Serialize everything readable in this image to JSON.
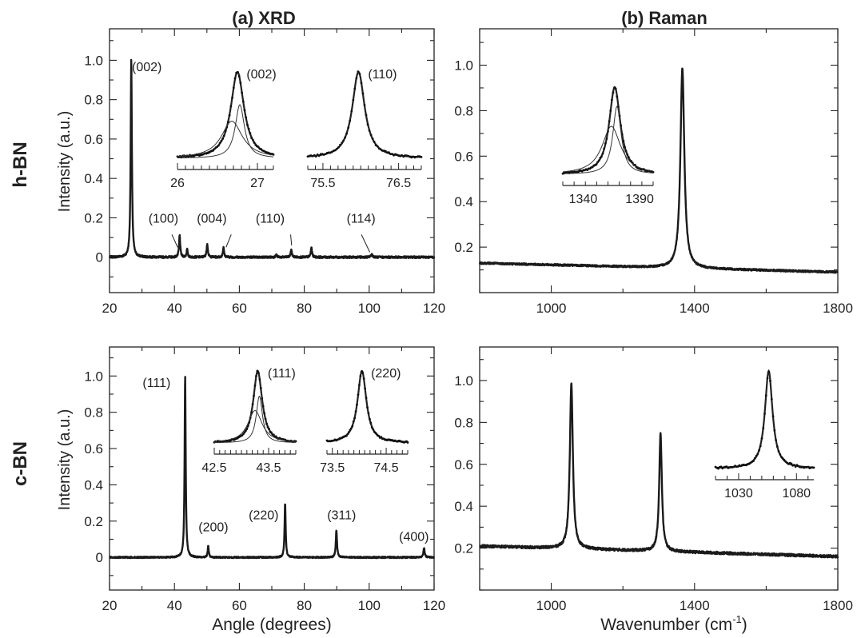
{
  "column_titles": [
    "(a)  XRD",
    "(b)  Raman"
  ],
  "row_labels": [
    "h-BN",
    "c-BN"
  ],
  "xrd_ylabel": "Intensity (a.u.)",
  "xrd_xlabel": "Angle (degrees)",
  "raman_xlabel_main": "Wavenumber (cm",
  "raman_xlabel_sup": "-1",
  "raman_xlabel_close": ")",
  "chart_data": [
    {
      "id": "xrd_hbn",
      "type": "line",
      "panel": "a",
      "row": "h-BN",
      "xlabel": "",
      "ylabel": "Intensity (a.u.)",
      "xlim": [
        20,
        120
      ],
      "ylim": [
        -0.18,
        1.16
      ],
      "xticks": [
        20,
        40,
        60,
        80,
        100,
        120
      ],
      "yticks": [
        0,
        0.2,
        0.4,
        0.6,
        0.8,
        1.0
      ],
      "yticklabels": [
        "0",
        "0.2",
        "0.4",
        "0.6",
        "0.8",
        "1.0"
      ],
      "baseline": 0,
      "noise": 0.005,
      "peaks": [
        {
          "x": 26.7,
          "h": 1.0,
          "w": 0.22
        },
        {
          "x": 41.6,
          "h": 0.11,
          "w": 0.22
        },
        {
          "x": 43.9,
          "h": 0.04,
          "w": 0.2
        },
        {
          "x": 50.1,
          "h": 0.07,
          "w": 0.22
        },
        {
          "x": 55.1,
          "h": 0.05,
          "w": 0.22
        },
        {
          "x": 71.4,
          "h": 0.012,
          "w": 0.25
        },
        {
          "x": 76.0,
          "h": 0.04,
          "w": 0.22
        },
        {
          "x": 82.2,
          "h": 0.05,
          "w": 0.22
        },
        {
          "x": 100.8,
          "h": 0.015,
          "w": 0.3
        }
      ],
      "annotations": [
        {
          "text": "(002)",
          "x": 31.5,
          "y": 0.945
        },
        {
          "text": "(100)",
          "x": 36.6,
          "y": 0.175
        },
        {
          "text": "(004)",
          "x": 51.5,
          "y": 0.175
        },
        {
          "text": "(110)",
          "x": 69.5,
          "y": 0.175
        },
        {
          "text": "(114)",
          "x": 97.5,
          "y": 0.175
        }
      ],
      "leaders": [
        {
          "x1": 39.2,
          "y1": 0.115,
          "x2": 41.0,
          "y2": 0.05
        },
        {
          "x1": 57.5,
          "y1": 0.115,
          "x2": 55.9,
          "y2": 0.05
        },
        {
          "x1": 75.8,
          "y1": 0.115,
          "x2": 76.1,
          "y2": 0.06
        },
        {
          "x1": 97.6,
          "y1": 0.115,
          "x2": 100.2,
          "y2": 0.025
        }
      ],
      "insets": [
        {
          "label": "(002)",
          "xlim": [
            26.0,
            27.2
          ],
          "center": 26.75,
          "w": 0.1,
          "tick_labels": [
            "26",
            "27"
          ],
          "tick_values": [
            26,
            27
          ],
          "minor_step": 0.1,
          "components": [
            {
              "center": 26.68,
              "w": 0.16,
              "h": 0.43
            },
            {
              "center": 26.78,
              "w": 0.07,
              "h": 0.62
            }
          ]
        },
        {
          "label": "(110)",
          "xlim": [
            75.3,
            76.8
          ],
          "center": 75.97,
          "w": 0.1,
          "tick_labels": [
            "75.5",
            "76.5"
          ],
          "tick_values": [
            75.5,
            76.5
          ],
          "minor_step": 0.1
        }
      ]
    },
    {
      "id": "raman_hbn",
      "type": "line",
      "panel": "b",
      "row": "h-BN",
      "xlabel": "",
      "ylabel": "",
      "xlim": [
        800,
        1800
      ],
      "ylim": [
        0.0,
        1.16
      ],
      "xticks": [
        1000,
        1400,
        1800
      ],
      "yticks": [
        0.2,
        0.4,
        0.6,
        0.8,
        1.0
      ],
      "yticklabels": [
        "0.2",
        "0.4",
        "0.6",
        "0.8",
        "1.0"
      ],
      "baseline_start": 0.13,
      "baseline_end": 0.09,
      "noise": 0.004,
      "peaks": [
        {
          "x": 1366,
          "h": 0.88,
          "w": 6.5
        }
      ],
      "insets": [
        {
          "label": "",
          "xlim": [
            1322,
            1402
          ],
          "center": 1368,
          "w": 6,
          "tick_labels": [
            "1340",
            "1390"
          ],
          "tick_values": [
            1340,
            1390
          ],
          "minor_step": 10,
          "components": [
            {
              "center": 1365,
              "w": 10,
              "h": 0.55
            },
            {
              "center": 1370,
              "w": 4.5,
              "h": 0.78
            }
          ]
        }
      ]
    },
    {
      "id": "xrd_cbn",
      "type": "line",
      "panel": "a",
      "row": "c-BN",
      "xlabel": "Angle (degrees)",
      "ylabel": "Intensity (a.u.)",
      "xlim": [
        20,
        120
      ],
      "ylim": [
        -0.18,
        1.16
      ],
      "xticks": [
        20,
        40,
        60,
        80,
        100,
        120
      ],
      "yticks": [
        0,
        0.2,
        0.4,
        0.6,
        0.8,
        1.0
      ],
      "yticklabels": [
        "0",
        "0.2",
        "0.4",
        "0.6",
        "0.8",
        "1.0"
      ],
      "baseline": 0,
      "noise": 0.004,
      "peaks": [
        {
          "x": 43.3,
          "h": 1.0,
          "w": 0.2
        },
        {
          "x": 50.4,
          "h": 0.06,
          "w": 0.2
        },
        {
          "x": 74.1,
          "h": 0.3,
          "w": 0.2
        },
        {
          "x": 89.9,
          "h": 0.15,
          "w": 0.22
        },
        {
          "x": 116.9,
          "h": 0.05,
          "w": 0.25
        }
      ],
      "annotations": [
        {
          "text": "(111)",
          "x": 34.5,
          "y": 0.94
        },
        {
          "text": "(200)",
          "x": 52.0,
          "y": 0.145
        },
        {
          "text": "(220)",
          "x": 67.5,
          "y": 0.21
        },
        {
          "text": "(311)",
          "x": 91.5,
          "y": 0.21
        },
        {
          "text": "(400)",
          "x": 113.8,
          "y": 0.09
        }
      ],
      "leaders": [],
      "insets": [
        {
          "label": "(111)",
          "xlim": [
            42.5,
            44.0
          ],
          "center": 43.3,
          "w": 0.1,
          "tick_labels": [
            "42.5",
            "43.5"
          ],
          "tick_values": [
            42.5,
            43.5
          ],
          "minor_step": 0.1,
          "components": [
            {
              "center": 43.25,
              "w": 0.16,
              "h": 0.45
            },
            {
              "center": 43.33,
              "w": 0.07,
              "h": 0.65
            }
          ]
        },
        {
          "label": "(220)",
          "xlim": [
            73.4,
            74.9
          ],
          "center": 74.05,
          "w": 0.1,
          "tick_labels": [
            "73.5",
            "74.5"
          ],
          "tick_values": [
            73.5,
            74.5
          ],
          "minor_step": 0.1
        }
      ]
    },
    {
      "id": "raman_cbn",
      "type": "line",
      "panel": "b",
      "row": "c-BN",
      "xlabel": "Wavenumber (cm-1)",
      "ylabel": "",
      "xlim": [
        800,
        1800
      ],
      "ylim": [
        0.0,
        1.16
      ],
      "xticks": [
        1000,
        1400,
        1800
      ],
      "yticks": [
        0.2,
        0.4,
        0.6,
        0.8,
        1.0
      ],
      "yticklabels": [
        "0.2",
        "0.4",
        "0.6",
        "0.8",
        "1.0"
      ],
      "baseline_start": 0.21,
      "baseline_end": 0.16,
      "noise": 0.006,
      "peaks": [
        {
          "x": 1056,
          "h": 0.79,
          "w": 5
        },
        {
          "x": 1305,
          "h": 0.56,
          "w": 4.5
        }
      ],
      "insets": [
        {
          "label": "",
          "xlim": [
            1010,
            1095
          ],
          "center": 1056,
          "w": 4,
          "tick_labels": [
            "1030",
            "1080"
          ],
          "tick_values": [
            1030,
            1080
          ],
          "minor_step": 10
        }
      ]
    }
  ]
}
